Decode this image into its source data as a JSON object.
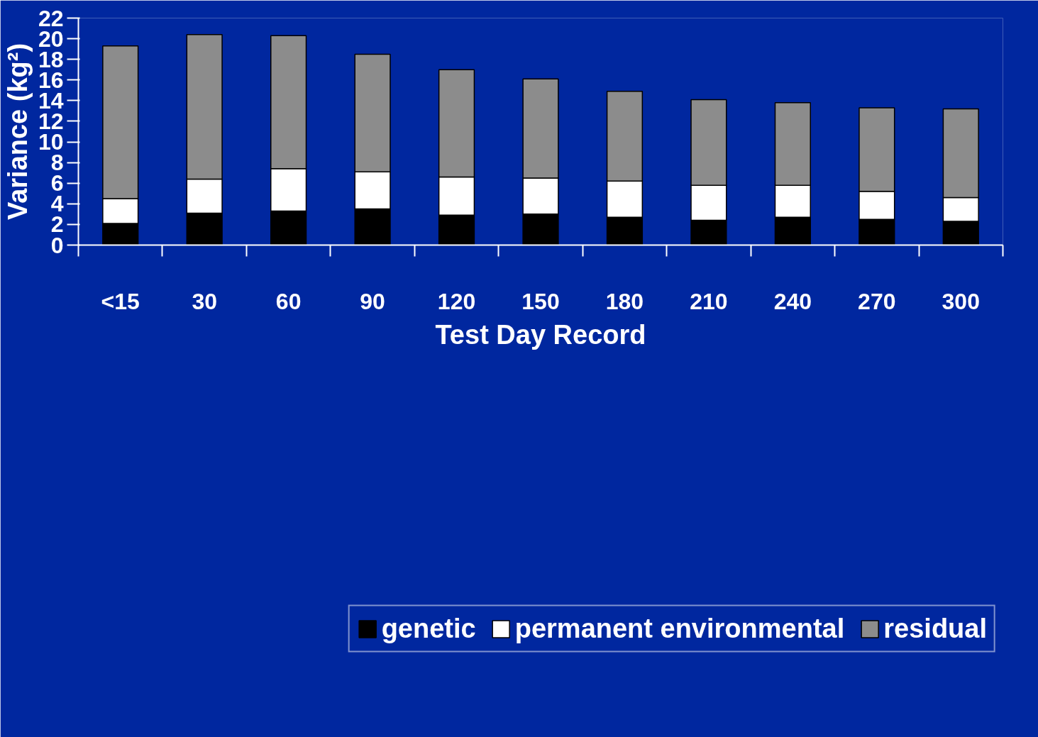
{
  "chart_data": {
    "type": "bar",
    "stacked": true,
    "xlabel": "Test Day Record",
    "ylabel": "Variance (kg²)",
    "categories": [
      "<15",
      "30",
      "60",
      "90",
      "120",
      "150",
      "180",
      "210",
      "240",
      "270",
      "300"
    ],
    "series": [
      {
        "name": "genetic",
        "color": "#000000",
        "values": [
          2.1,
          3.1,
          3.3,
          3.5,
          2.9,
          3.0,
          2.7,
          2.4,
          2.7,
          2.5,
          2.3
        ]
      },
      {
        "name": "permanent environmental",
        "color": "#ffffff",
        "values": [
          2.4,
          3.3,
          4.1,
          3.6,
          3.7,
          3.5,
          3.5,
          3.4,
          3.1,
          2.7,
          2.3
        ]
      },
      {
        "name": "residual",
        "color": "#8c8c8c",
        "values": [
          14.8,
          14.0,
          12.9,
          11.4,
          10.4,
          9.6,
          8.7,
          8.3,
          8.0,
          8.1,
          8.6
        ]
      }
    ],
    "ylim": [
      0,
      22
    ],
    "yticks": [
      0,
      2,
      4,
      6,
      8,
      10,
      12,
      14,
      16,
      18,
      20,
      22
    ],
    "grid": false,
    "legend": "bottom"
  }
}
